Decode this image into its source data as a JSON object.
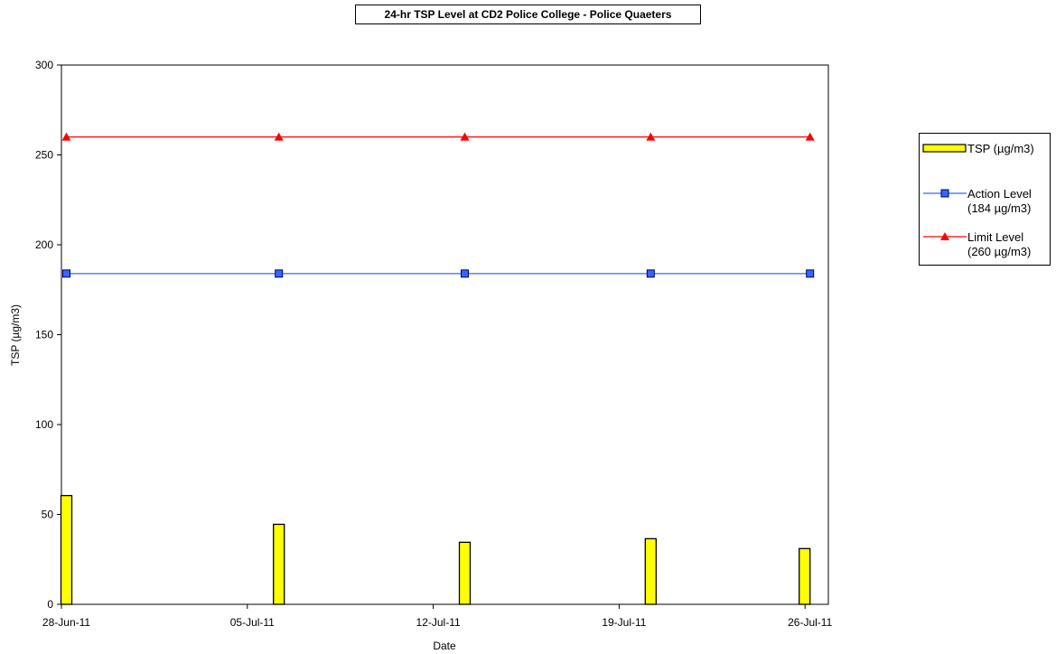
{
  "chart_data": {
    "type": "bar",
    "title": "24-hr TSP Level at CD2 Police College - Police Quaeters",
    "xlabel": "Date",
    "ylabel": "TSP (µg/m3)",
    "ylim": [
      0,
      300
    ],
    "yticks": [
      "0",
      "50",
      "100",
      "150",
      "200",
      "250",
      "300"
    ],
    "xlim": [
      "2011-06-28",
      "2011-07-27"
    ],
    "xticks": [
      {
        "date": "2011-06-28",
        "label": "28-Jun-11"
      },
      {
        "date": "2011-07-05",
        "label": "05-Jul-11"
      },
      {
        "date": "2011-07-12",
        "label": "12-Jul-11"
      },
      {
        "date": "2011-07-19",
        "label": "19-Jul-11"
      },
      {
        "date": "2011-07-26",
        "label": "26-Jul-11"
      }
    ],
    "grid": false,
    "legend_position": "right",
    "series": [
      {
        "name": "TSP (µg/m3)",
        "type": "bar",
        "color": "#ffff00",
        "x": [
          "2011-06-28",
          "2011-07-06",
          "2011-07-13",
          "2011-07-20",
          "2011-07-26"
        ],
        "values": [
          60.5,
          44.5,
          34.5,
          36.5,
          31
        ]
      },
      {
        "name": "Action Level\n(184 µg/m3)",
        "type": "line",
        "marker": "square",
        "color": "#3366ff",
        "x": [
          "2011-06-28",
          "2011-07-06",
          "2011-07-13",
          "2011-07-20",
          "2011-07-26"
        ],
        "values": [
          184,
          184,
          184,
          184,
          184
        ]
      },
      {
        "name": "Limit Level\n(260 µg/m3)",
        "type": "line",
        "marker": "triangle",
        "color": "#ff0000",
        "x": [
          "2011-06-28",
          "2011-07-06",
          "2011-07-13",
          "2011-07-20",
          "2011-07-26"
        ],
        "values": [
          260,
          260,
          260,
          260,
          260
        ]
      }
    ]
  }
}
